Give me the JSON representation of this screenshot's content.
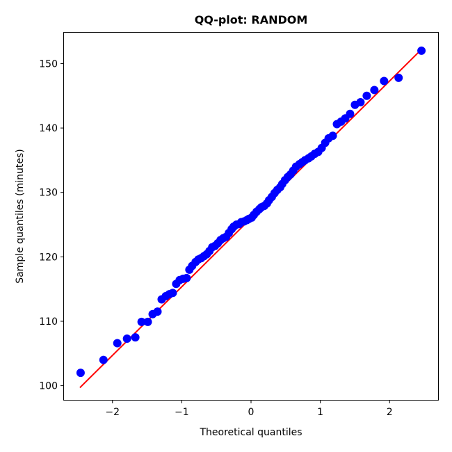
{
  "chart_data": {
    "type": "scatter",
    "title": "QQ-plot: RANDOM",
    "xlabel": "Theoretical quantiles",
    "ylabel": "Sample quantiles (minutes)",
    "xlim": [
      -2.7,
      2.7
    ],
    "ylim": [
      97.8,
      154.8
    ],
    "xticks": [
      -2,
      -1,
      0,
      1,
      2
    ],
    "xtick_labels": [
      "−2",
      "−1",
      "0",
      "1",
      "2"
    ],
    "yticks": [
      100,
      110,
      120,
      130,
      140,
      150
    ],
    "ytick_labels": [
      "100",
      "110",
      "120",
      "130",
      "140",
      "150"
    ],
    "grid": false,
    "marker_color": "#0000ff",
    "line_color": "#ff0000",
    "series": [
      {
        "kind": "points",
        "x": [
          -2.46,
          -2.13,
          -1.93,
          -1.79,
          -1.67,
          -1.58,
          -1.49,
          -1.42,
          -1.35,
          -1.29,
          -1.23,
          -1.18,
          -1.13,
          -1.08,
          -1.03,
          -0.98,
          -0.93,
          -0.89,
          -0.85,
          -0.8,
          -0.76,
          -0.72,
          -0.68,
          -0.64,
          -0.6,
          -0.56,
          -0.52,
          -0.48,
          -0.44,
          -0.4,
          -0.36,
          -0.32,
          -0.28,
          -0.25,
          -0.21,
          -0.17,
          -0.14,
          -0.1,
          -0.06,
          -0.03,
          0.01,
          0.04,
          0.08,
          0.12,
          0.15,
          0.19,
          0.23,
          0.26,
          0.3,
          0.34,
          0.38,
          0.42,
          0.45,
          0.49,
          0.53,
          0.57,
          0.61,
          0.65,
          0.7,
          0.74,
          0.78,
          0.83,
          0.87,
          0.92,
          0.97,
          1.02,
          1.07,
          1.12,
          1.18,
          1.24,
          1.3,
          1.36,
          1.43,
          1.5,
          1.58,
          1.67,
          1.78,
          1.92,
          2.13,
          2.46
        ],
        "y": [
          102.0,
          104.0,
          106.6,
          107.3,
          107.5,
          109.9,
          109.9,
          111.1,
          111.5,
          113.4,
          113.9,
          114.2,
          114.4,
          115.8,
          116.4,
          116.6,
          116.7,
          118.0,
          118.6,
          119.2,
          119.6,
          119.8,
          120.1,
          120.4,
          120.9,
          121.5,
          121.7,
          122.1,
          122.6,
          122.9,
          123.1,
          123.7,
          124.3,
          124.7,
          125.0,
          125.1,
          125.4,
          125.5,
          125.7,
          125.9,
          126.1,
          126.5,
          127.0,
          127.4,
          127.7,
          127.9,
          128.3,
          128.8,
          129.3,
          129.9,
          130.4,
          130.8,
          131.3,
          131.9,
          132.4,
          132.8,
          133.4,
          134.0,
          134.4,
          134.7,
          135.0,
          135.3,
          135.6,
          136.0,
          136.3,
          136.9,
          137.7,
          138.4,
          138.8,
          140.6,
          141.0,
          141.5,
          142.2,
          143.6,
          144.0,
          145.0,
          145.9,
          147.3,
          147.8,
          152.0
        ]
      },
      {
        "kind": "reference-line",
        "x": [
          -2.47,
          2.46
        ],
        "y": [
          99.7,
          152.2
        ]
      }
    ]
  }
}
